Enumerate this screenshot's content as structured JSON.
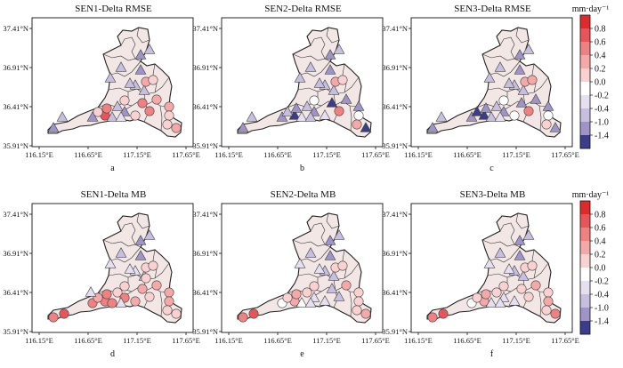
{
  "figure": {
    "x_ticks": [
      "116.15°E",
      "116.65°E",
      "117.15°E",
      "117.65°E"
    ],
    "y_ticks": [
      "37.41°N",
      "36.91°N",
      "36.41°N",
      "35.91°N"
    ],
    "colorbars": [
      {
        "unit": "mm·day⁻¹"
      },
      {
        "unit": "mm·day⁻¹"
      }
    ],
    "colorbar_ticks": [
      "0.8",
      "0.6",
      "0.4",
      "0.2",
      "0.0",
      "-0.2",
      "-0.4",
      "-1.0",
      "-1.4"
    ],
    "colorbar_colors": [
      "#e02a2a",
      "#e9545a",
      "#f08082",
      "#f4a8a8",
      "#f9d1d1",
      "#ffffff",
      "#e5dff0",
      "#c8bfe0",
      "#9f94c8",
      "#3b3c8a"
    ],
    "panels": [
      {
        "title": "SEN1-Delta RMSE",
        "label": "a"
      },
      {
        "title": "SEN2-Delta RMSE",
        "label": "b"
      },
      {
        "title": "SEN3-Delta RMSE",
        "label": "c"
      },
      {
        "title": "SEN1-Delta MB",
        "label": "d"
      },
      {
        "title": "SEN2-Delta MB",
        "label": "e"
      },
      {
        "title": "SEN3-Delta MB",
        "label": "f"
      }
    ]
  }
}
